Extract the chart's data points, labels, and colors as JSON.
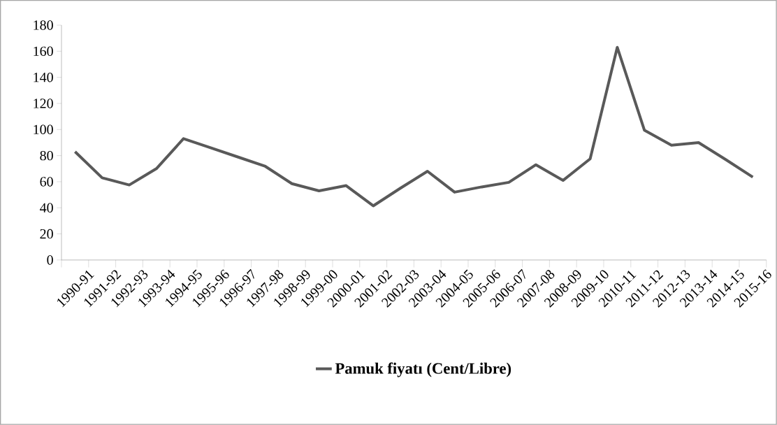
{
  "chart_data": {
    "type": "line",
    "categories": [
      "1990-91",
      "1991-92",
      "1992-93",
      "1993-94",
      "1994-95",
      "1995-96",
      "1996-97",
      "1997-98",
      "1998-99",
      "1999-00",
      "2000-01",
      "2001-02",
      "2002-03",
      "2003-04",
      "2004-05",
      "2005-06",
      "2006-07",
      "2007-08",
      "2008-09",
      "2009-10",
      "2010-11",
      "2011-12",
      "2012-13",
      "2013-14",
      "2014-15",
      "2015-16"
    ],
    "series": [
      {
        "name": "Pamuk fiyatı (Cent/Libre)",
        "color": "#595959",
        "values": [
          83,
          63,
          57.5,
          70,
          93,
          86,
          79,
          72,
          58.5,
          53,
          57,
          41.5,
          55,
          68,
          52,
          56,
          59.5,
          73,
          61,
          77.5,
          163,
          99.5,
          88,
          90,
          77,
          63.5
        ]
      }
    ],
    "ylim": [
      0,
      180
    ],
    "yticks": [
      0,
      20,
      40,
      60,
      80,
      100,
      120,
      140,
      160,
      180
    ],
    "legend": "bottom"
  }
}
